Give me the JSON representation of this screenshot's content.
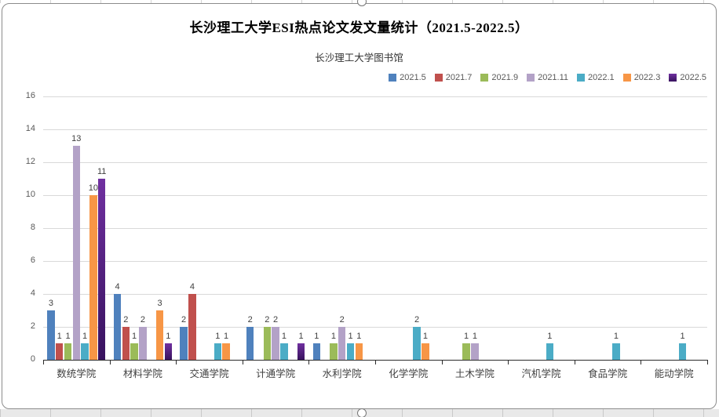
{
  "chart_data": {
    "type": "bar",
    "title": "长沙理工大学ESI热点论文发文量统计（2021.5-2022.5）",
    "subtitle": "长沙理工大学图书馆",
    "categories": [
      "数统学院",
      "材料学院",
      "交通学院",
      "计通学院",
      "水利学院",
      "化学学院",
      "土木学院",
      "汽机学院",
      "食品学院",
      "能动学院"
    ],
    "series": [
      {
        "name": "2021.5",
        "color": "#4F81BD",
        "values": [
          3,
          4,
          2,
          2,
          1,
          0,
          0,
          0,
          0,
          0
        ]
      },
      {
        "name": "2021.7",
        "color": "#C0504D",
        "values": [
          1,
          2,
          4,
          0,
          0,
          0,
          0,
          0,
          0,
          0
        ]
      },
      {
        "name": "2021.9",
        "color": "#9BBB59",
        "values": [
          1,
          1,
          0,
          2,
          1,
          0,
          1,
          0,
          0,
          0
        ]
      },
      {
        "name": "2021.11",
        "color": "#B3A2C7",
        "values": [
          13,
          2,
          0,
          2,
          2,
          0,
          1,
          0,
          0,
          0
        ]
      },
      {
        "name": "2022.1",
        "color": "#4BACC6",
        "values": [
          1,
          0,
          1,
          1,
          1,
          2,
          0,
          1,
          1,
          1
        ]
      },
      {
        "name": "2022.3",
        "color": "#F79646",
        "values": [
          10,
          3,
          1,
          0,
          1,
          1,
          0,
          0,
          0,
          0
        ]
      },
      {
        "name": "2022.5",
        "color": "#7030A0",
        "color_bottom": "#38125E",
        "values": [
          11,
          1,
          0,
          1,
          0,
          0,
          0,
          0,
          0,
          0
        ]
      }
    ],
    "ylim": [
      0,
      16
    ],
    "ytick_step": 2,
    "yticks": [
      0,
      2,
      4,
      6,
      8,
      10,
      12,
      14,
      16
    ],
    "grid": true,
    "legend_position": "top-right",
    "show_data_labels": true
  },
  "theme": {
    "gridline": "#D9D9D9",
    "axis": "#2B2B2B",
    "ytick_text": "#595959",
    "category_text": "#3F3F3F",
    "data_label": "#404040",
    "legend_text": "#595959",
    "title_color": "#000000",
    "subtitle_color": "#333333",
    "chart_border": "#8C8C8C"
  }
}
